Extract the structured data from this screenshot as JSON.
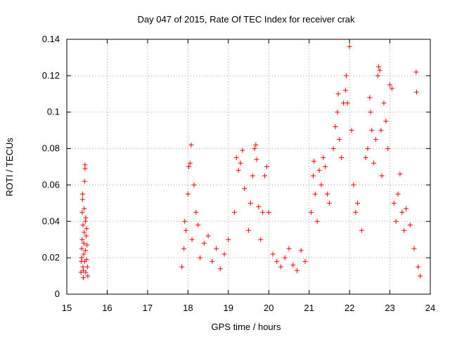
{
  "chart_data": {
    "type": "scatter",
    "title": "Day 047 of 2015, Rate Of TEC Index for receiver crak",
    "xlabel": "GPS time / hours",
    "ylabel": "ROTI / TECUs",
    "xlim": [
      15,
      24
    ],
    "ylim": [
      0,
      0.14
    ],
    "xticks": [
      15,
      16,
      17,
      18,
      19,
      20,
      21,
      22,
      23,
      24
    ],
    "xtick_labels": [
      "15",
      "16",
      "17",
      "18",
      "19",
      "20",
      "21",
      "22",
      "23",
      "24"
    ],
    "yticks": [
      0,
      0.02,
      0.04,
      0.06,
      0.08,
      0.1,
      0.12,
      0.14
    ],
    "ytick_labels": [
      "0",
      "0.02",
      "0.04",
      "0.06",
      "0.08",
      "0.1",
      "0.12",
      "0.14"
    ],
    "grid": true,
    "marker": "+",
    "marker_color": "#ff0000",
    "series": [
      {
        "name": "ROTI",
        "points": [
          [
            15.35,
            0.012
          ],
          [
            15.36,
            0.018
          ],
          [
            15.37,
            0.025
          ],
          [
            15.38,
            0.03
          ],
          [
            15.38,
            0.045
          ],
          [
            15.39,
            0.052
          ],
          [
            15.4,
            0.038
          ],
          [
            15.4,
            0.015
          ],
          [
            15.41,
            0.009
          ],
          [
            15.42,
            0.022
          ],
          [
            15.42,
            0.028
          ],
          [
            15.43,
            0.034
          ],
          [
            15.44,
            0.018
          ],
          [
            15.44,
            0.062
          ],
          [
            15.45,
            0.069
          ],
          [
            15.45,
            0.071
          ],
          [
            15.46,
            0.04
          ],
          [
            15.46,
            0.024
          ],
          [
            15.47,
            0.012
          ],
          [
            15.48,
            0.032
          ],
          [
            15.49,
            0.019
          ],
          [
            15.5,
            0.027
          ],
          [
            15.51,
            0.015
          ],
          [
            15.52,
            0.01
          ],
          [
            15.39,
            0.055
          ],
          [
            15.43,
            0.047
          ],
          [
            15.47,
            0.042
          ],
          [
            15.37,
            0.02
          ],
          [
            15.49,
            0.036
          ],
          [
            15.41,
            0.013
          ],
          [
            17.85,
            0.015
          ],
          [
            17.9,
            0.025
          ],
          [
            17.92,
            0.04
          ],
          [
            17.95,
            0.035
          ],
          [
            18.0,
            0.055
          ],
          [
            18.02,
            0.07
          ],
          [
            18.05,
            0.072
          ],
          [
            18.08,
            0.082
          ],
          [
            18.1,
            0.03
          ],
          [
            18.15,
            0.06
          ],
          [
            18.2,
            0.045
          ],
          [
            18.25,
            0.038
          ],
          [
            18.3,
            0.02
          ],
          [
            18.4,
            0.028
          ],
          [
            18.5,
            0.032
          ],
          [
            18.6,
            0.018
          ],
          [
            18.7,
            0.025
          ],
          [
            18.8,
            0.014
          ],
          [
            18.9,
            0.022
          ],
          [
            19.0,
            0.03
          ],
          [
            19.15,
            0.045
          ],
          [
            19.2,
            0.075
          ],
          [
            19.25,
            0.068
          ],
          [
            19.3,
            0.072
          ],
          [
            19.35,
            0.079
          ],
          [
            19.4,
            0.058
          ],
          [
            19.5,
            0.035
          ],
          [
            19.55,
            0.05
          ],
          [
            19.6,
            0.065
          ],
          [
            19.65,
            0.08
          ],
          [
            19.68,
            0.082
          ],
          [
            19.7,
            0.074
          ],
          [
            19.75,
            0.048
          ],
          [
            19.8,
            0.03
          ],
          [
            19.85,
            0.045
          ],
          [
            19.9,
            0.065
          ],
          [
            19.95,
            0.07
          ],
          [
            20.0,
            0.045
          ],
          [
            20.1,
            0.022
          ],
          [
            20.2,
            0.018
          ],
          [
            20.3,
            0.015
          ],
          [
            20.4,
            0.02
          ],
          [
            20.5,
            0.025
          ],
          [
            20.6,
            0.016
          ],
          [
            20.7,
            0.013
          ],
          [
            20.8,
            0.024
          ],
          [
            20.9,
            0.018
          ],
          [
            21.05,
            0.045
          ],
          [
            21.1,
            0.065
          ],
          [
            21.12,
            0.073
          ],
          [
            21.15,
            0.055
          ],
          [
            21.2,
            0.04
          ],
          [
            21.25,
            0.068
          ],
          [
            21.3,
            0.06
          ],
          [
            21.35,
            0.075
          ],
          [
            21.4,
            0.07
          ],
          [
            21.45,
            0.055
          ],
          [
            21.5,
            0.05
          ],
          [
            21.6,
            0.08
          ],
          [
            21.65,
            0.092
          ],
          [
            21.7,
            0.1
          ],
          [
            21.72,
            0.11
          ],
          [
            21.75,
            0.085
          ],
          [
            21.8,
            0.075
          ],
          [
            21.85,
            0.105
          ],
          [
            21.9,
            0.112
          ],
          [
            21.92,
            0.12
          ],
          [
            21.95,
            0.105
          ],
          [
            22.0,
            0.136
          ],
          [
            22.05,
            0.09
          ],
          [
            22.1,
            0.06
          ],
          [
            22.15,
            0.045
          ],
          [
            22.2,
            0.05
          ],
          [
            22.3,
            0.035
          ],
          [
            22.4,
            0.075
          ],
          [
            22.45,
            0.08
          ],
          [
            22.5,
            0.108
          ],
          [
            22.52,
            0.1
          ],
          [
            22.55,
            0.09
          ],
          [
            22.6,
            0.072
          ],
          [
            22.65,
            0.085
          ],
          [
            22.7,
            0.12
          ],
          [
            22.72,
            0.125
          ],
          [
            22.75,
            0.123
          ],
          [
            22.78,
            0.09
          ],
          [
            22.8,
            0.065
          ],
          [
            22.85,
            0.105
          ],
          [
            22.9,
            0.095
          ],
          [
            22.95,
            0.08
          ],
          [
            23.0,
            0.115
          ],
          [
            23.05,
            0.113
          ],
          [
            23.1,
            0.05
          ],
          [
            23.15,
            0.04
          ],
          [
            23.2,
            0.055
          ],
          [
            23.25,
            0.066
          ],
          [
            23.3,
            0.045
          ],
          [
            23.35,
            0.035
          ],
          [
            23.4,
            0.047
          ],
          [
            23.5,
            0.038
          ],
          [
            23.6,
            0.025
          ],
          [
            23.65,
            0.122
          ],
          [
            23.66,
            0.111
          ],
          [
            23.7,
            0.015
          ],
          [
            23.75,
            0.01
          ]
        ]
      }
    ]
  }
}
